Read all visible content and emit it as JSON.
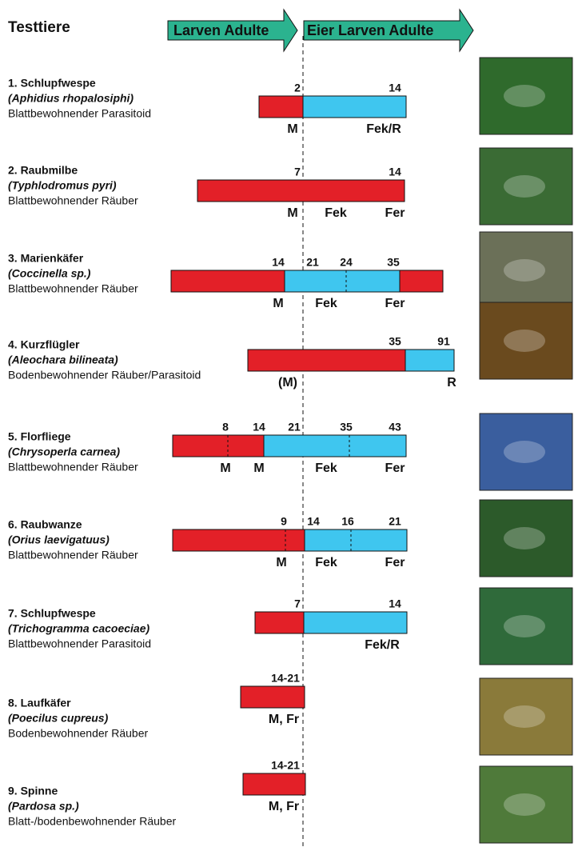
{
  "header": {
    "title": "Testtiere",
    "arrow_left": "Larven  Adulte",
    "arrow_right": "Eier Larven Adulte"
  },
  "rows": [
    {
      "name": "1. Schlupfwespe",
      "species": "(Aphidius rhopalosiphi)",
      "habitat": "Blattbewohnender Parasitoid",
      "days": [
        "2",
        "14"
      ],
      "stages": [
        "M",
        "Fek/R"
      ]
    },
    {
      "name": "2. Raubmilbe",
      "species": "(Typhlodromus pyri)",
      "habitat": "Blattbewohnender Räuber",
      "days": [
        "7",
        "14"
      ],
      "stages": [
        "M",
        "Fek",
        "Fer"
      ]
    },
    {
      "name": "3. Marienkäfer",
      "species": "(Coccinella sp.)",
      "habitat": "Blattbewohnender Räuber",
      "days": [
        "14",
        "21",
        "24",
        "35"
      ],
      "stages": [
        "M",
        "Fek",
        "Fer"
      ]
    },
    {
      "name": "4. Kurzflügler",
      "species": "(Aleochara bilineata)",
      "habitat": "Bodenbewohnender Räuber/Parasitoid",
      "days": [
        "35",
        "91"
      ],
      "stages": [
        "(M)",
        "R"
      ]
    },
    {
      "name": "5. Florfliege",
      "species": "(Chrysoperla carnea)",
      "habitat": "Blattbewohnender Räuber",
      "days": [
        "8",
        "14",
        "21",
        "35",
        "43"
      ],
      "stages": [
        "M",
        "M",
        "Fek",
        "Fer"
      ]
    },
    {
      "name": "6. Raubwanze",
      "species": "(Orius laevigatuus)",
      "habitat": "Blattbewohnender Räuber",
      "days": [
        "9",
        "14",
        "16",
        "21"
      ],
      "stages": [
        "M",
        "Fek",
        "Fer"
      ]
    },
    {
      "name": "7. Schlupfwespe",
      "species": "(Trichogramma cacoeciae)",
      "habitat": "Blattbewohnender Parasitoid",
      "days": [
        "7",
        "14"
      ],
      "stages": [
        "Fek/R"
      ]
    },
    {
      "name": "8. Laufkäfer",
      "species": "(Poecilus cupreus)",
      "habitat": "Bodenbewohnender Räuber",
      "days": [
        "14-21"
      ],
      "stages": [
        "M, Fr"
      ]
    },
    {
      "name": "9. Spinne",
      "species": "(Pardosa  sp.)",
      "habitat": "Blatt-/bodenbewohnender Räuber",
      "days": [
        "14-21"
      ],
      "stages": [
        "M, Fr"
      ]
    }
  ]
}
